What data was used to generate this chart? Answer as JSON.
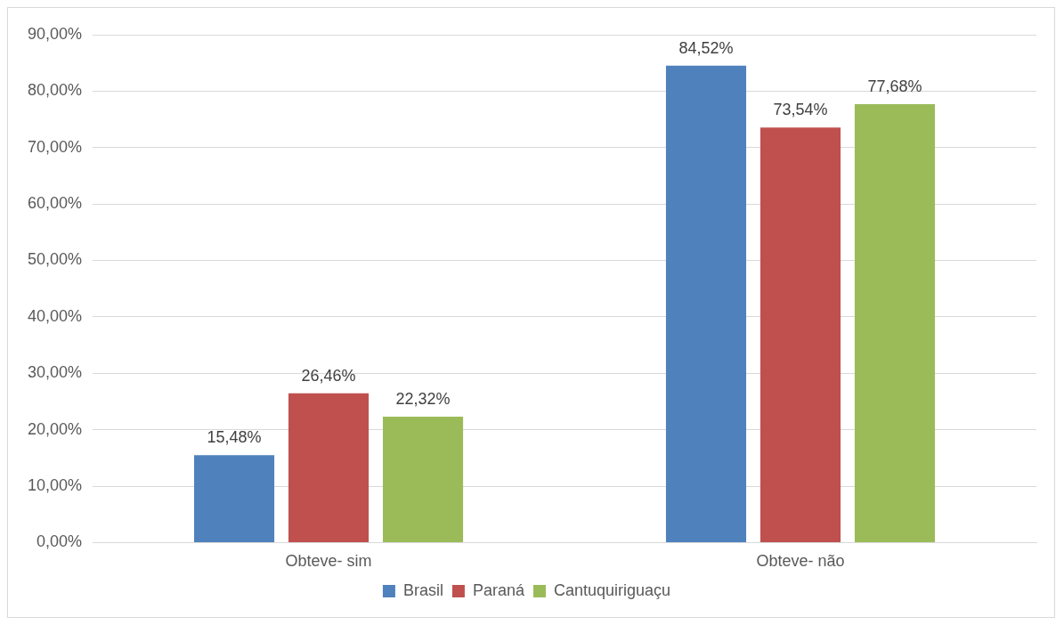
{
  "chart_data": {
    "type": "bar",
    "categories": [
      "Obteve- sim",
      "Obteve- não"
    ],
    "series": [
      {
        "name": "Brasil",
        "color": "#4f81bd",
        "values": [
          15.48,
          84.52
        ],
        "value_labels": [
          "15,48%",
          "84,52%"
        ]
      },
      {
        "name": "Paraná",
        "color": "#c0504d",
        "values": [
          26.46,
          73.54
        ],
        "value_labels": [
          "26,46%",
          "73,54%"
        ]
      },
      {
        "name": "Cantuquiriguaçu",
        "color": "#9bbb59",
        "values": [
          22.32,
          77.68
        ],
        "value_labels": [
          "22,32%",
          "77,68%"
        ]
      }
    ],
    "ylim": [
      0,
      90
    ],
    "yticks": [
      {
        "value": 0,
        "label": "0,00%"
      },
      {
        "value": 10,
        "label": "10,00%"
      },
      {
        "value": 20,
        "label": "20,00%"
      },
      {
        "value": 30,
        "label": "30,00%"
      },
      {
        "value": 40,
        "label": "40,00%"
      },
      {
        "value": 50,
        "label": "50,00%"
      },
      {
        "value": 60,
        "label": "60,00%"
      },
      {
        "value": 70,
        "label": "70,00%"
      },
      {
        "value": 80,
        "label": "80,00%"
      },
      {
        "value": 90,
        "label": "90,00%"
      }
    ],
    "grid": "y",
    "legend": "bottom"
  }
}
